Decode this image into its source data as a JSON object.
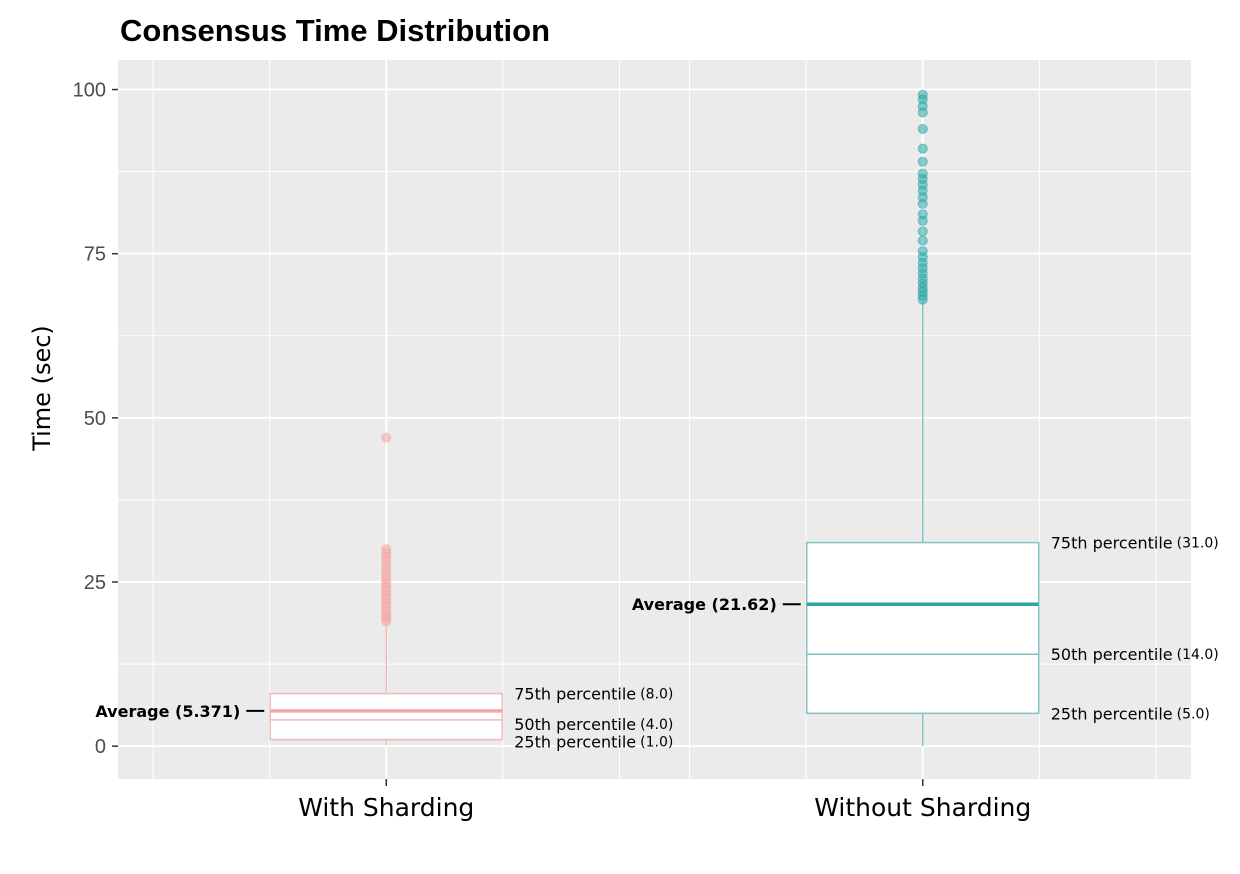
{
  "chart_data": {
    "type": "boxplot",
    "title": "Consensus Time Distribution",
    "xlabel": "",
    "ylabel": "Time (sec)",
    "ylim": [
      -5,
      104.5
    ],
    "yticks": [
      0,
      25,
      50,
      75,
      100
    ],
    "grid": true,
    "categories": [
      "With Sharding",
      "Without Sharding"
    ],
    "colors": {
      "with": "#f4a6a6",
      "without": "#2aa6a6",
      "panel": "#ebebeb",
      "grid": "#ffffff",
      "tick": "#4d4d4d"
    },
    "boxes": [
      {
        "category": "With Sharding",
        "q1": 1.0,
        "median": 4.0,
        "q3": 8.0,
        "mean": 5.371,
        "whisker_low": 0.2,
        "whisker_high": 18.8,
        "outliers": [
          19,
          19.5,
          20,
          20.6,
          21.2,
          21.8,
          22.4,
          23,
          23.6,
          24.2,
          24.8,
          25.4,
          26,
          26.7,
          27.4,
          28.1,
          28.8,
          29.4,
          30,
          47
        ],
        "avg_text": "Average (5.371)",
        "q3_label": "75th percentile",
        "q3_value": "(8.0)",
        "median_label": "50th percentile",
        "median_value": "(4.0)",
        "q1_label": "25th percentile",
        "q1_value": "(1.0)"
      },
      {
        "category": "Without Sharding",
        "q1": 5.0,
        "median": 14.0,
        "q3": 31.0,
        "mean": 21.62,
        "whisker_low": 0.0,
        "whisker_high": 67.8,
        "outliers": [
          68,
          68.6,
          69.2,
          69.8,
          70.5,
          71.2,
          72,
          72.8,
          73.6,
          74.5,
          75.4,
          77,
          78.4,
          80,
          81,
          82.6,
          83.6,
          84.6,
          85.5,
          86.4,
          87.2,
          89,
          91,
          94,
          96.5,
          97.5,
          98.5,
          99.2
        ],
        "avg_text": "Average (21.62)",
        "q3_label": "75th percentile",
        "q3_value": "(31.0)",
        "median_label": "50th percentile",
        "median_value": "(14.0)",
        "q1_label": "25th percentile",
        "q1_value": "(5.0)"
      }
    ]
  }
}
